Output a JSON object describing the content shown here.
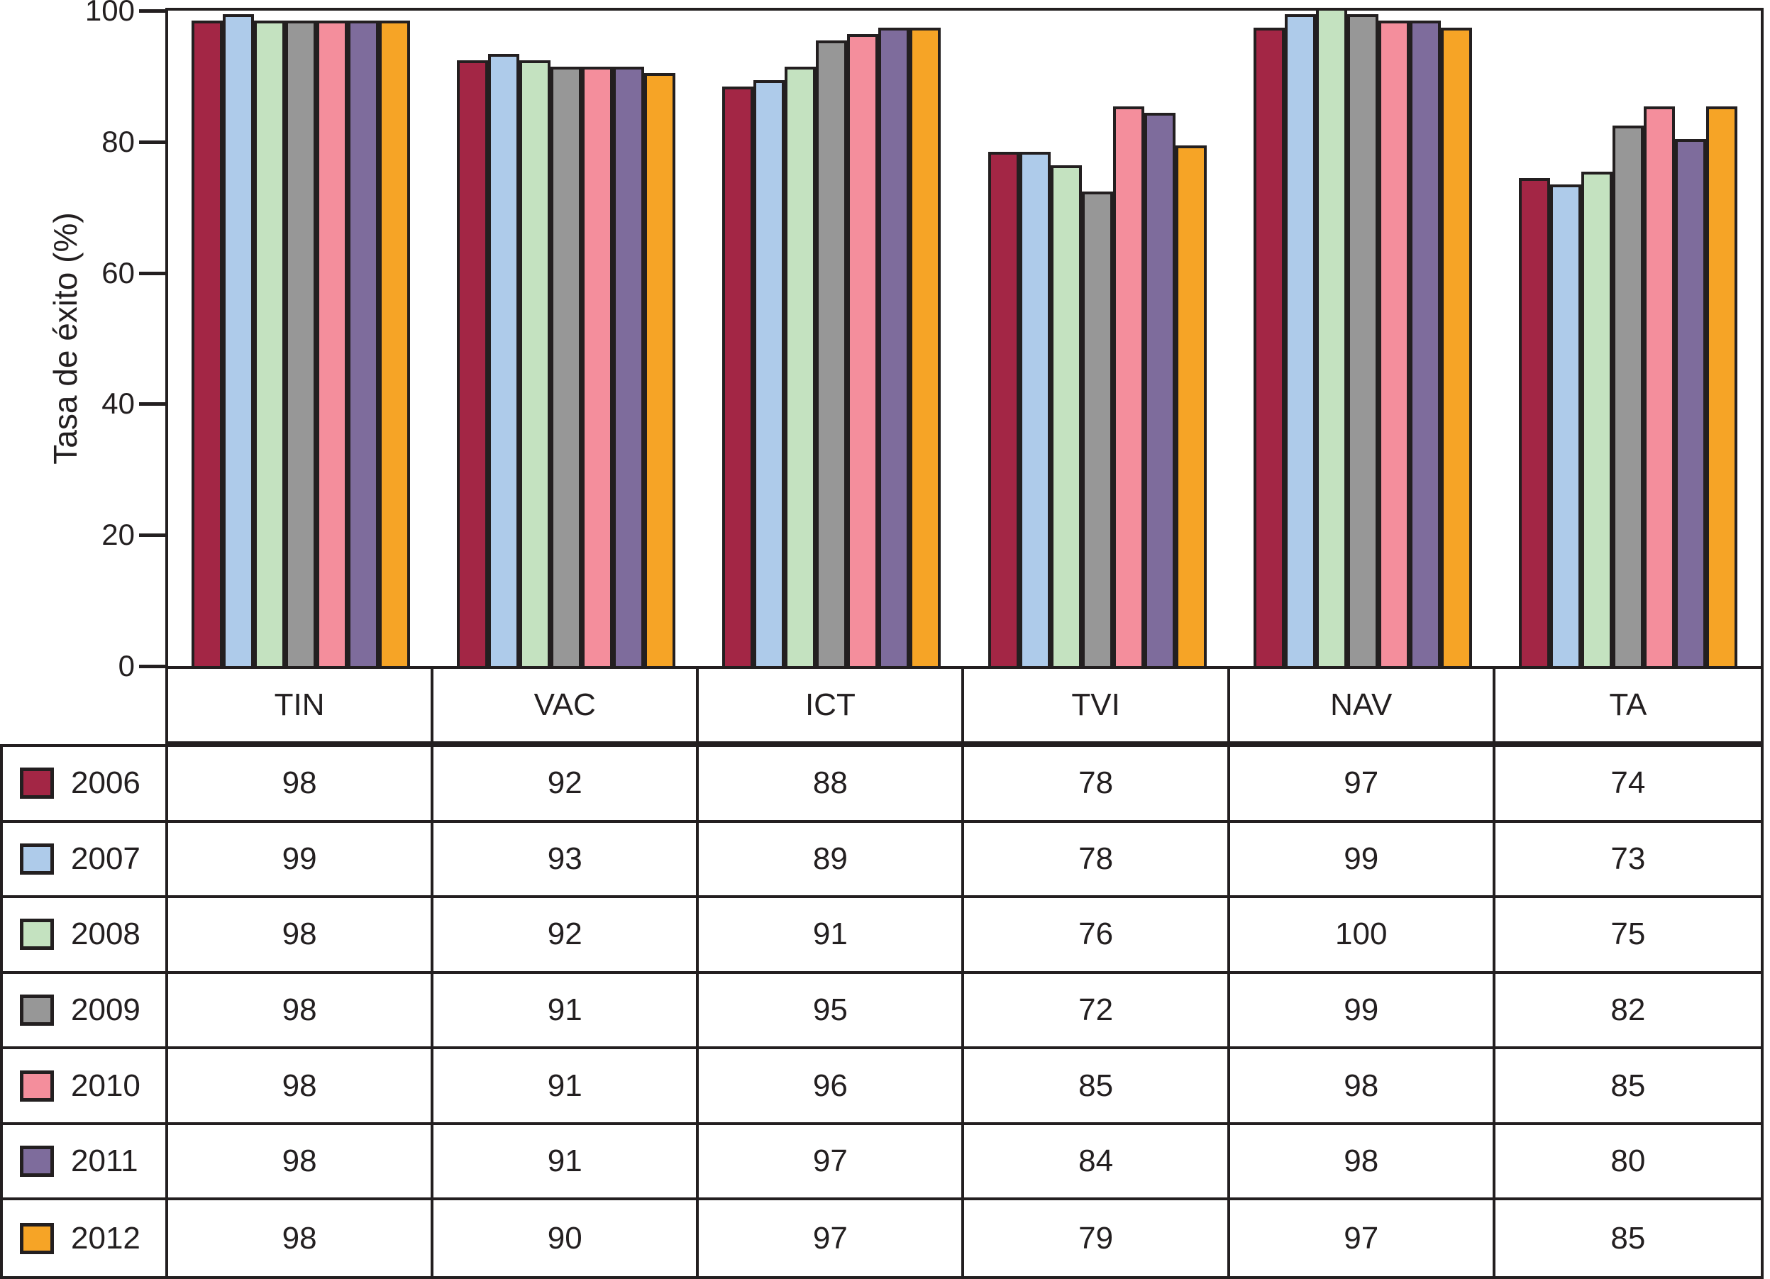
{
  "chart_data": {
    "type": "bar",
    "title": "",
    "xlabel": "",
    "ylabel": "Tasa de éxito (%)",
    "ylim": [
      0,
      100
    ],
    "yticks": [
      0,
      20,
      40,
      60,
      80,
      100
    ],
    "grid": false,
    "legend_position": "table-left",
    "categories": [
      "TIN",
      "VAC",
      "ICT",
      "TVI",
      "NAV",
      "TA"
    ],
    "series": [
      {
        "name": "2006",
        "color": "#A32645",
        "values": [
          98,
          92,
          88,
          78,
          97,
          74
        ]
      },
      {
        "name": "2007",
        "color": "#AECBEA",
        "values": [
          99,
          93,
          89,
          78,
          99,
          73
        ]
      },
      {
        "name": "2008",
        "color": "#C4E2C0",
        "values": [
          98,
          92,
          91,
          76,
          100,
          75
        ]
      },
      {
        "name": "2009",
        "color": "#979797",
        "values": [
          98,
          91,
          95,
          72,
          99,
          82
        ]
      },
      {
        "name": "2010",
        "color": "#F48E9C",
        "values": [
          98,
          91,
          96,
          85,
          98,
          85
        ]
      },
      {
        "name": "2011",
        "color": "#7E6C9C",
        "values": [
          98,
          91,
          97,
          84,
          98,
          80
        ]
      },
      {
        "name": "2012",
        "color": "#F6A426",
        "values": [
          98,
          90,
          97,
          79,
          97,
          85
        ]
      }
    ],
    "line_color": "#231F20",
    "background_color": "#FFFFFF"
  }
}
